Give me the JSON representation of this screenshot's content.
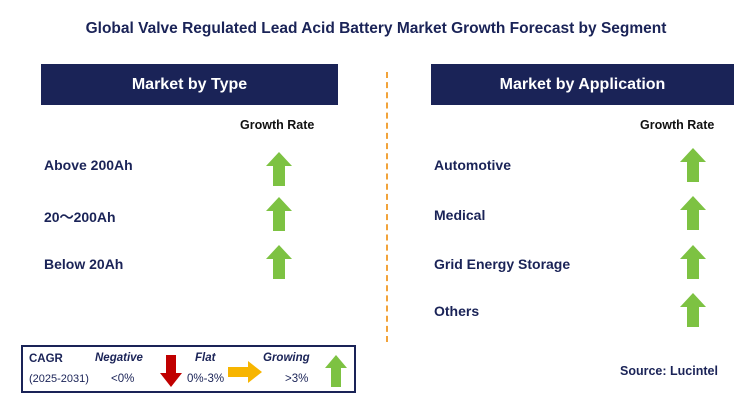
{
  "title": "Global Valve Regulated Lead Acid Battery Market Growth Forecast by Segment",
  "left_panel": {
    "header": "Market by Type",
    "growth_label": "Growth Rate",
    "rows": [
      {
        "label": "Above 200Ah",
        "trend": "growing"
      },
      {
        "label": "20～200Ah",
        "trend": "growing"
      },
      {
        "label": "Below 20Ah",
        "trend": "growing"
      }
    ]
  },
  "right_panel": {
    "header": "Market by Application",
    "growth_label": "Growth Rate",
    "rows": [
      {
        "label": "Automotive",
        "trend": "growing"
      },
      {
        "label": "Medical",
        "trend": "growing"
      },
      {
        "label": "Grid Energy Storage",
        "trend": "growing"
      },
      {
        "label": "Others",
        "trend": "growing"
      }
    ]
  },
  "legend": {
    "cagr_label": "CAGR",
    "period": "(2025-2031)",
    "negative_label": "Negative",
    "negative_range": "<0%",
    "flat_label": "Flat",
    "flat_range": "0%-3%",
    "growing_label": "Growing",
    "growing_range": ">3%"
  },
  "source": "Source: Lucintel",
  "colors": {
    "navy": "#1a2357",
    "green_arrow": "#7dc242",
    "red_arrow": "#c00000",
    "yellow_arrow": "#f7b500",
    "divider": "#f2a33a"
  }
}
